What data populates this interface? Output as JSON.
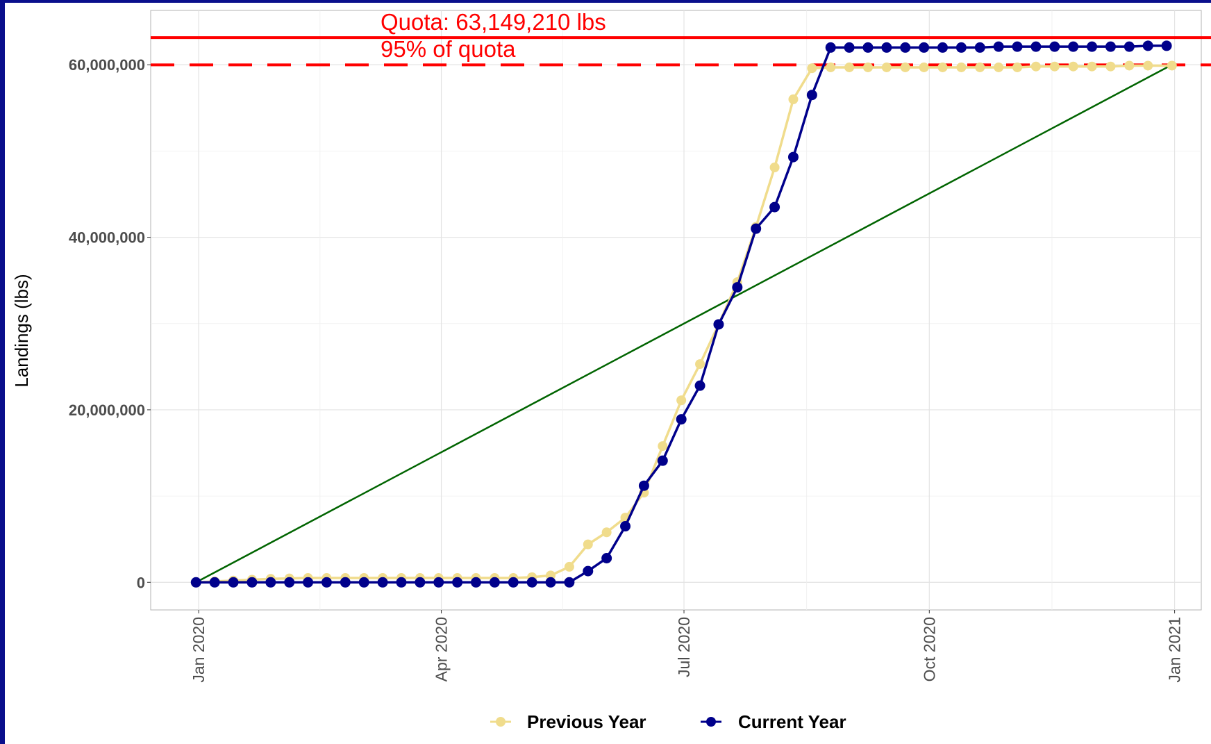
{
  "chart_data": {
    "type": "line",
    "title": "",
    "xlabel": "",
    "ylabel": "Landings (lbs)",
    "x_ticks": [
      "Jan 2020",
      "Apr 2020",
      "Jul 2020",
      "Oct 2020",
      "Jan 2021"
    ],
    "y_ticks": [
      "0",
      "20,000,000",
      "40,000,000",
      "60,000,000"
    ],
    "xlim": [
      "2019-12-14",
      "2021-01-11"
    ],
    "ylim": [
      -3200000,
      66300000
    ],
    "grid": true,
    "legend_position": "bottom",
    "reference_lines": [
      {
        "label": "Quota: 63,149,210 lbs",
        "value": 63149210,
        "style": "solid",
        "color": "#ff0000"
      },
      {
        "label": "95% of quota",
        "value": 59991750,
        "style": "dashed",
        "color": "#ff0000"
      }
    ],
    "target_line": {
      "color": "#006400",
      "points": [
        [
          "2019-12-31",
          0
        ],
        [
          "2020-12-31",
          60000000
        ]
      ]
    },
    "series": [
      {
        "name": "Previous Year",
        "color": "#f0dc8c",
        "x": [
          "2019-12-31",
          "2020-01-07",
          "2020-01-14",
          "2020-01-21",
          "2020-01-28",
          "2020-02-04",
          "2020-02-11",
          "2020-02-18",
          "2020-02-25",
          "2020-03-03",
          "2020-03-10",
          "2020-03-17",
          "2020-03-24",
          "2020-03-31",
          "2020-04-07",
          "2020-04-14",
          "2020-04-21",
          "2020-04-28",
          "2020-05-05",
          "2020-05-12",
          "2020-05-19",
          "2020-05-26",
          "2020-06-02",
          "2020-06-09",
          "2020-06-16",
          "2020-06-23",
          "2020-06-30",
          "2020-07-07",
          "2020-07-14",
          "2020-07-21",
          "2020-07-28",
          "2020-08-04",
          "2020-08-11",
          "2020-08-18",
          "2020-08-25",
          "2020-09-01",
          "2020-09-08",
          "2020-09-15",
          "2020-09-22",
          "2020-09-29",
          "2020-10-06",
          "2020-10-13",
          "2020-10-20",
          "2020-10-27",
          "2020-11-03",
          "2020-11-10",
          "2020-11-17",
          "2020-11-24",
          "2020-12-01",
          "2020-12-08",
          "2020-12-15",
          "2020-12-22",
          "2020-12-31"
        ],
        "values": [
          0,
          100000,
          200000,
          300000,
          400000,
          450000,
          500000,
          500000,
          500000,
          500000,
          500000,
          500000,
          500000,
          500000,
          500000,
          500000,
          500000,
          500000,
          600000,
          800000,
          1800000,
          4400000,
          5800000,
          7500000,
          10400000,
          15800000,
          21100000,
          25300000,
          29900000,
          34800000,
          41200000,
          48100000,
          56000000,
          59600000,
          59700000,
          59700000,
          59700000,
          59700000,
          59700000,
          59700000,
          59700000,
          59700000,
          59700000,
          59700000,
          59700000,
          59800000,
          59800000,
          59800000,
          59800000,
          59800000,
          59900000,
          59900000,
          59900000
        ]
      },
      {
        "name": "Current Year",
        "color": "#00008b",
        "x": [
          "2019-12-31",
          "2020-01-07",
          "2020-01-14",
          "2020-01-21",
          "2020-01-28",
          "2020-02-04",
          "2020-02-11",
          "2020-02-18",
          "2020-02-25",
          "2020-03-03",
          "2020-03-10",
          "2020-03-17",
          "2020-03-24",
          "2020-03-31",
          "2020-04-07",
          "2020-04-14",
          "2020-04-21",
          "2020-04-28",
          "2020-05-05",
          "2020-05-12",
          "2020-05-19",
          "2020-05-26",
          "2020-06-02",
          "2020-06-09",
          "2020-06-16",
          "2020-06-23",
          "2020-06-30",
          "2020-07-07",
          "2020-07-14",
          "2020-07-21",
          "2020-07-28",
          "2020-08-04",
          "2020-08-11",
          "2020-08-18",
          "2020-08-25",
          "2020-09-01",
          "2020-09-08",
          "2020-09-15",
          "2020-09-22",
          "2020-09-29",
          "2020-10-06",
          "2020-10-13",
          "2020-10-20",
          "2020-10-27",
          "2020-11-03",
          "2020-11-10",
          "2020-11-17",
          "2020-11-24",
          "2020-12-01",
          "2020-12-08",
          "2020-12-15",
          "2020-12-22",
          "2020-12-29"
        ],
        "values": [
          0,
          0,
          0,
          0,
          0,
          0,
          0,
          0,
          0,
          0,
          0,
          0,
          0,
          0,
          0,
          0,
          0,
          0,
          0,
          0,
          0,
          1300000,
          2800000,
          6500000,
          11200000,
          14100000,
          18900000,
          22800000,
          29900000,
          34200000,
          41000000,
          43500000,
          49300000,
          56500000,
          62000000,
          62000000,
          62000000,
          62000000,
          62000000,
          62000000,
          62000000,
          62000000,
          62000000,
          62100000,
          62100000,
          62100000,
          62100000,
          62100000,
          62100000,
          62100000,
          62100000,
          62200000,
          62200000
        ]
      }
    ]
  }
}
